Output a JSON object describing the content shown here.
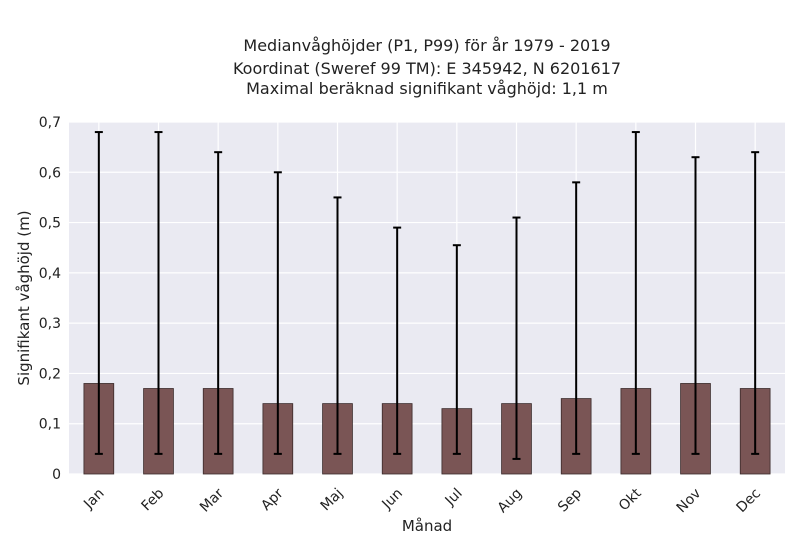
{
  "chart_data": {
    "type": "bar",
    "title_lines": [
      "Medianvåghöjder (P1, P99) för år 1979 - 2019",
      "Koordinat (Sweref 99 TM): E 345942, N 6201617",
      "Maximal beräknad signifikant våghöjd: 1,1 m"
    ],
    "xlabel": "Månad",
    "ylabel": "Signifikant våghöjd (m)",
    "categories": [
      "Jan",
      "Feb",
      "Mar",
      "Apr",
      "Maj",
      "Jun",
      "Jul",
      "Aug",
      "Sep",
      "Okt",
      "Nov",
      "Dec"
    ],
    "series": [
      {
        "values": [
          0.18,
          0.17,
          0.17,
          0.14,
          0.14,
          0.14,
          0.13,
          0.14,
          0.15,
          0.17,
          0.18,
          0.17
        ],
        "error_low": [
          0.04,
          0.04,
          0.04,
          0.04,
          0.04,
          0.04,
          0.04,
          0.03,
          0.04,
          0.04,
          0.04,
          0.04
        ],
        "error_high": [
          0.68,
          0.68,
          0.64,
          0.6,
          0.55,
          0.49,
          0.455,
          0.51,
          0.58,
          0.68,
          0.63,
          0.64
        ]
      }
    ],
    "ylim": [
      0,
      0.7
    ],
    "yticks": [
      0,
      0.1,
      0.2,
      0.3,
      0.4,
      0.5,
      0.6,
      0.7
    ],
    "ytick_labels": [
      "0",
      "0,1",
      "0,2",
      "0,3",
      "0,4",
      "0,5",
      "0,6",
      "0,7"
    ],
    "grid": true,
    "colors": {
      "bar_fill": "#7a5555",
      "bar_edge": "#3a2a2a",
      "error_bar": "#000000",
      "plot_background": "#eaeaf2",
      "grid": "#ffffff"
    }
  }
}
